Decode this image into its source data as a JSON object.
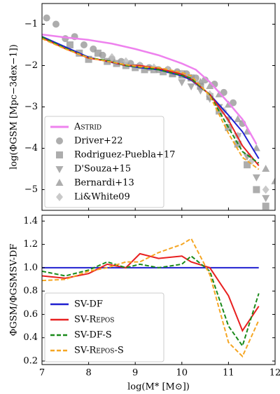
{
  "chart_data": [
    {
      "type": "line",
      "ylabel": "log(ΦGSM [Mpc−3dex−1])",
      "xlim": [
        7,
        12
      ],
      "xticks": [
        7,
        8,
        9,
        10,
        11,
        12
      ],
      "ylim": [
        -5.5,
        -0.5
      ],
      "yticks": [
        {
          "value": -1,
          "label": "−1"
        },
        {
          "value": -2,
          "label": "−2"
        },
        {
          "value": -3,
          "label": "−3"
        },
        {
          "value": -4,
          "label": "−4"
        },
        {
          "value": -5,
          "label": "−5"
        }
      ],
      "legend": "lower left",
      "series": [
        {
          "kind": "line",
          "name": "Astrid",
          "color": "#ee82ee",
          "width": 2.5,
          "x": [
            7,
            7.5,
            8,
            8.5,
            9,
            9.5,
            10,
            10.3,
            10.6,
            11,
            11.3,
            11.6
          ],
          "values": [
            -1.25,
            -1.32,
            -1.38,
            -1.47,
            -1.6,
            -1.75,
            -1.95,
            -2.1,
            -2.4,
            -2.9,
            -3.3,
            -3.9
          ]
        },
        {
          "kind": "scatter",
          "name": "Driver+22",
          "marker": "circle",
          "color": "#999999",
          "x": [
            7.1,
            7.3,
            7.5,
            7.7,
            7.9,
            8.1,
            8.3,
            8.5,
            8.7,
            8.9,
            9.1,
            9.3,
            9.5,
            9.7,
            9.9,
            10.1,
            10.3,
            10.5,
            10.7,
            10.9,
            11.1,
            11.3
          ],
          "values": [
            -0.85,
            -1.0,
            -1.35,
            -1.3,
            -1.5,
            -1.6,
            -1.75,
            -1.85,
            -1.9,
            -1.95,
            -2.0,
            -2.05,
            -2.1,
            -2.1,
            -2.15,
            -2.2,
            -2.3,
            -2.35,
            -2.45,
            -2.65,
            -2.9,
            -3.4
          ]
        },
        {
          "kind": "scatter",
          "name": "Rodriguez-Puebla+17",
          "marker": "square",
          "color": "#999999",
          "x": [
            7.6,
            7.8,
            8.0,
            8.2,
            8.4,
            8.6,
            8.8,
            9.0,
            9.2,
            9.4,
            9.6,
            9.8,
            10.0,
            10.2,
            10.4,
            10.6,
            10.8,
            11.0,
            11.2,
            11.4,
            11.6,
            11.8
          ],
          "values": [
            -1.5,
            -1.7,
            -1.85,
            -1.7,
            -1.9,
            -1.95,
            -2.0,
            -2.05,
            -2.1,
            -2.1,
            -2.15,
            -2.2,
            -2.2,
            -2.3,
            -2.5,
            -2.75,
            -3.1,
            -3.5,
            -3.9,
            -4.4,
            -5.0,
            -5.4
          ]
        },
        {
          "kind": "scatter",
          "name": "D'Souza+15",
          "marker": "tri-down",
          "color": "#999999",
          "x": [
            10.0,
            10.2,
            10.4,
            10.6,
            10.8,
            11.0,
            11.2,
            11.4,
            11.6,
            11.8
          ],
          "values": [
            -2.4,
            -2.5,
            -2.6,
            -2.8,
            -3.0,
            -3.3,
            -3.7,
            -4.2,
            -4.7,
            -5.2
          ]
        },
        {
          "kind": "scatter",
          "name": "Bernardi+13",
          "marker": "tri-up",
          "color": "#999999",
          "x": [
            9.8,
            10.0,
            10.2,
            10.4,
            10.6,
            10.8,
            11.0,
            11.2,
            11.4,
            11.6,
            11.8,
            12.0
          ],
          "values": [
            -2.2,
            -2.25,
            -2.3,
            -2.4,
            -2.5,
            -2.7,
            -2.95,
            -3.3,
            -3.6,
            -4.0,
            -4.5,
            -4.8
          ]
        },
        {
          "kind": "scatter",
          "name": "Li&White09",
          "marker": "diamond",
          "color": "#bbbbbb",
          "x": [
            8.5,
            8.8,
            9.1,
            9.4,
            9.7,
            10.0,
            10.3,
            10.6,
            10.9,
            11.2,
            11.5,
            11.8
          ],
          "values": [
            -1.8,
            -1.9,
            -2.0,
            -2.05,
            -2.1,
            -2.2,
            -2.4,
            -2.7,
            -3.1,
            -3.7,
            -4.3,
            -5.0
          ]
        },
        {
          "kind": "line",
          "color": "#1f1fd0",
          "width": 2,
          "x": [
            7.0,
            7.5,
            8.0,
            8.4,
            8.8,
            9.1,
            9.5,
            10.0,
            10.2,
            10.6,
            11.0,
            11.3,
            11.65
          ],
          "values": [
            -1.3,
            -1.55,
            -1.8,
            -1.9,
            -2.0,
            -2.05,
            -2.1,
            -2.25,
            -2.35,
            -2.7,
            -3.2,
            -3.6,
            -4.25
          ]
        },
        {
          "kind": "line",
          "color": "#e82020",
          "width": 2,
          "x": [
            7.0,
            7.5,
            8.0,
            8.4,
            8.8,
            9.1,
            9.5,
            10.0,
            10.2,
            10.6,
            11.0,
            11.3,
            11.65
          ],
          "values": [
            -1.33,
            -1.59,
            -1.82,
            -1.89,
            -2.0,
            -2.0,
            -2.07,
            -2.21,
            -2.33,
            -2.7,
            -3.32,
            -3.94,
            -4.42
          ]
        },
        {
          "kind": "line",
          "color": "#1a8a1a",
          "width": 2,
          "dash": true,
          "x": [
            7.0,
            7.5,
            8.0,
            8.4,
            8.8,
            9.1,
            9.5,
            10.0,
            10.2,
            10.6,
            11.0,
            11.3,
            11.65
          ],
          "values": [
            -1.31,
            -1.58,
            -1.81,
            -1.88,
            -2.0,
            -2.04,
            -2.1,
            -2.24,
            -2.31,
            -2.71,
            -3.5,
            -4.08,
            -4.36
          ]
        },
        {
          "kind": "line",
          "color": "#f5a623",
          "width": 2,
          "dash": true,
          "x": [
            7.0,
            7.5,
            8.0,
            8.4,
            8.8,
            9.1,
            9.5,
            10.0,
            10.2,
            10.6,
            11.0,
            11.3,
            11.65
          ],
          "values": [
            -1.35,
            -1.6,
            -1.81,
            -1.9,
            -1.98,
            -2.03,
            -2.05,
            -2.17,
            -2.25,
            -2.73,
            -3.64,
            -4.22,
            -4.51
          ]
        }
      ]
    },
    {
      "type": "line",
      "ylabel": "ΦGSM/ΦGSMSV-DF",
      "xlabel": "log(M* [M⊙])",
      "xlim": [
        7,
        12
      ],
      "xticks": [
        7,
        8,
        9,
        10,
        11,
        12
      ],
      "ylim": [
        0.17,
        1.45
      ],
      "yticks": [
        0.2,
        0.4,
        0.6,
        0.8,
        {
          "value": 1,
          "label": "1.0"
        },
        1.2,
        1.4
      ],
      "legend": "lower left",
      "series": [
        {
          "kind": "line",
          "name": "SV-DF",
          "color": "#1f1fd0",
          "width": 2,
          "x": [
            7.0,
            7.5,
            8.0,
            8.4,
            8.8,
            9.1,
            9.5,
            10.0,
            10.2,
            10.6,
            11.0,
            11.3,
            11.65
          ],
          "values": [
            1,
            1,
            1,
            1,
            1,
            1,
            1,
            1,
            1,
            1,
            1,
            1,
            1
          ]
        },
        {
          "kind": "line",
          "name": "SV-Repos",
          "color": "#e82020",
          "width": 2,
          "x": [
            7.0,
            7.5,
            8.0,
            8.4,
            8.8,
            9.1,
            9.5,
            10.0,
            10.2,
            10.6,
            11.0,
            11.3,
            11.65
          ],
          "values": [
            0.93,
            0.91,
            0.95,
            1.03,
            1.0,
            1.12,
            1.08,
            1.1,
            1.05,
            1.0,
            0.76,
            0.46,
            0.67
          ]
        },
        {
          "kind": "line",
          "name": "SV-DF-S",
          "color": "#1a8a1a",
          "width": 2,
          "dash": true,
          "x": [
            7.0,
            7.5,
            8.0,
            8.4,
            8.8,
            9.1,
            9.5,
            10.0,
            10.2,
            10.6,
            11.0,
            11.3,
            11.65
          ],
          "values": [
            0.97,
            0.93,
            0.98,
            1.05,
            1.0,
            1.03,
            1.0,
            1.03,
            1.1,
            0.97,
            0.5,
            0.33,
            0.78
          ]
        },
        {
          "kind": "line",
          "name": "SV-Repos-S",
          "color": "#f5a623",
          "width": 2,
          "dash": true,
          "x": [
            7.0,
            7.5,
            8.0,
            8.4,
            8.8,
            9.1,
            9.5,
            10.0,
            10.2,
            10.6,
            11.0,
            11.3,
            11.65
          ],
          "values": [
            0.89,
            0.9,
            0.97,
            1.0,
            1.05,
            1.05,
            1.13,
            1.2,
            1.25,
            0.94,
            0.36,
            0.24,
            0.55
          ]
        }
      ]
    }
  ]
}
